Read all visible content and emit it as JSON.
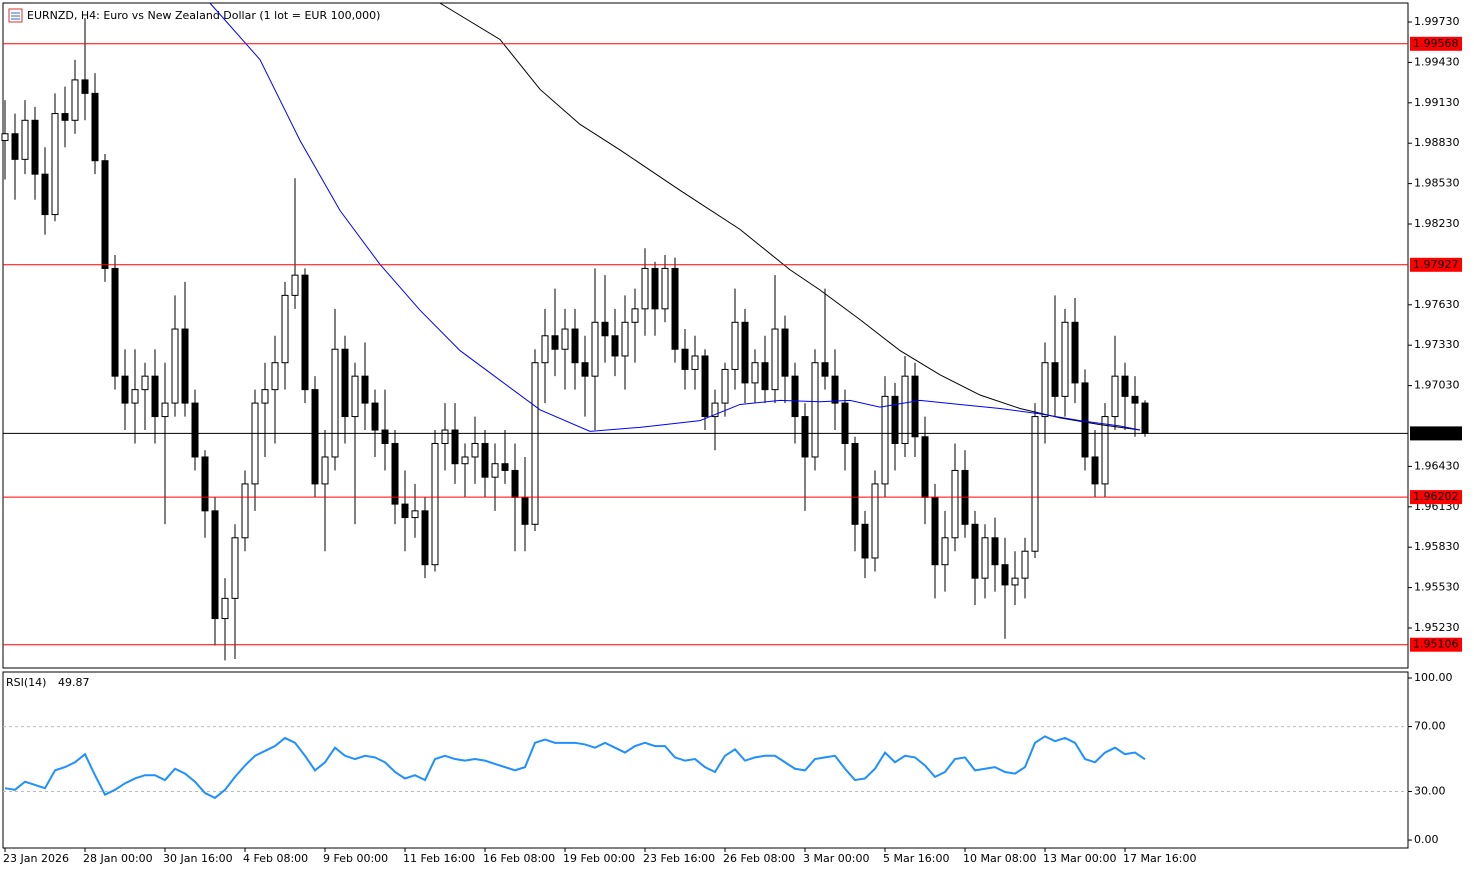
{
  "chart_data": [
    {
      "type": "candlestick",
      "title": "EURNZD, H4:  Euro vs New Zealand Dollar (1 lot = EUR 100,000)",
      "up_color": "#ffffff",
      "down_color": "#000000",
      "ohlc": [
        [
          1.9885,
          1.9915,
          1.9856,
          1.989
        ],
        [
          1.989,
          1.9905,
          1.9841,
          1.9871
        ],
        [
          1.9871,
          1.9915,
          1.986,
          1.99
        ],
        [
          1.99,
          1.991,
          1.9841,
          1.986
        ],
        [
          1.986,
          1.988,
          1.9815,
          1.983
        ],
        [
          1.983,
          1.992,
          1.9825,
          1.9905
        ],
        [
          1.9905,
          1.9925,
          1.988,
          1.99
        ],
        [
          1.99,
          1.9945,
          1.989,
          1.993
        ],
        [
          1.993,
          1.9976,
          1.99,
          1.992
        ],
        [
          1.992,
          1.9935,
          1.986,
          1.987
        ],
        [
          1.987,
          1.9875,
          1.978,
          1.979
        ],
        [
          1.979,
          1.98,
          1.97,
          1.971
        ],
        [
          1.971,
          1.973,
          1.967,
          1.969
        ],
        [
          1.969,
          1.973,
          1.966,
          1.97
        ],
        [
          1.97,
          1.972,
          1.967,
          1.971
        ],
        [
          1.971,
          1.973,
          1.966,
          1.968
        ],
        [
          1.968,
          1.972,
          1.96,
          1.969
        ],
        [
          1.969,
          1.977,
          1.968,
          1.9745
        ],
        [
          1.9745,
          1.978,
          1.968,
          1.969
        ],
        [
          1.969,
          1.97,
          1.964,
          1.965
        ],
        [
          1.965,
          1.9655,
          1.959,
          1.961
        ],
        [
          1.961,
          1.962,
          1.951,
          1.953
        ],
        [
          1.953,
          1.956,
          1.9499,
          1.9545
        ],
        [
          1.9545,
          1.96,
          1.95,
          1.959
        ],
        [
          1.959,
          1.964,
          1.958,
          1.963
        ],
        [
          1.963,
          1.97,
          1.961,
          1.969
        ],
        [
          1.969,
          1.972,
          1.965,
          1.97
        ],
        [
          1.97,
          1.974,
          1.966,
          1.972
        ],
        [
          1.972,
          1.978,
          1.97,
          1.977
        ],
        [
          1.977,
          1.9857,
          1.976,
          1.9785
        ],
        [
          1.9785,
          1.979,
          1.969,
          1.97
        ],
        [
          1.97,
          1.971,
          1.962,
          1.963
        ],
        [
          1.963,
          1.967,
          1.958,
          1.965
        ],
        [
          1.965,
          1.976,
          1.964,
          1.973
        ],
        [
          1.973,
          1.974,
          1.966,
          1.968
        ],
        [
          1.968,
          1.972,
          1.96,
          1.971
        ],
        [
          1.971,
          1.9735,
          1.967,
          1.969
        ],
        [
          1.969,
          1.97,
          1.965,
          1.967
        ],
        [
          1.967,
          1.97,
          1.964,
          1.966
        ],
        [
          1.966,
          1.967,
          1.96,
          1.9615
        ],
        [
          1.9615,
          1.964,
          1.958,
          1.9605
        ],
        [
          1.9605,
          1.963,
          1.959,
          1.961
        ],
        [
          1.961,
          1.962,
          1.956,
          1.957
        ],
        [
          1.957,
          1.967,
          1.9565,
          1.966
        ],
        [
          1.966,
          1.969,
          1.964,
          1.967
        ],
        [
          1.967,
          1.969,
          1.963,
          1.9645
        ],
        [
          1.9645,
          1.966,
          1.962,
          1.965
        ],
        [
          1.965,
          1.968,
          1.963,
          1.966
        ],
        [
          1.966,
          1.967,
          1.962,
          1.9635
        ],
        [
          1.9635,
          1.966,
          1.961,
          1.9645
        ],
        [
          1.9645,
          1.967,
          1.963,
          1.964
        ],
        [
          1.964,
          1.966,
          1.958,
          1.962
        ],
        [
          1.962,
          1.965,
          1.958,
          1.96
        ],
        [
          1.96,
          1.973,
          1.9595,
          1.972
        ],
        [
          1.972,
          1.976,
          1.969,
          1.974
        ],
        [
          1.974,
          1.9775,
          1.971,
          1.973
        ],
        [
          1.973,
          1.976,
          1.97,
          1.9745
        ],
        [
          1.9745,
          1.976,
          1.97,
          1.972
        ],
        [
          1.972,
          1.974,
          1.968,
          1.971
        ],
        [
          1.971,
          1.979,
          1.967,
          1.975
        ],
        [
          1.975,
          1.9785,
          1.972,
          1.974
        ],
        [
          1.974,
          1.976,
          1.971,
          1.9725
        ],
        [
          1.9725,
          1.977,
          1.97,
          1.975
        ],
        [
          1.975,
          1.9775,
          1.972,
          1.976
        ],
        [
          1.976,
          1.9805,
          1.974,
          1.979
        ],
        [
          1.979,
          1.9795,
          1.974,
          1.976
        ],
        [
          1.976,
          1.98,
          1.975,
          1.979
        ],
        [
          1.979,
          1.9798,
          1.972,
          1.973
        ],
        [
          1.973,
          1.9745,
          1.97,
          1.9715
        ],
        [
          1.9715,
          1.974,
          1.97,
          1.9725
        ],
        [
          1.9725,
          1.973,
          1.967,
          1.968
        ],
        [
          1.968,
          1.97,
          1.9655,
          1.969
        ],
        [
          1.969,
          1.972,
          1.968,
          1.9715
        ],
        [
          1.9715,
          1.9775,
          1.97,
          1.975
        ],
        [
          1.975,
          1.976,
          1.969,
          1.9705
        ],
        [
          1.9705,
          1.973,
          1.969,
          1.972
        ],
        [
          1.972,
          1.974,
          1.969,
          1.97
        ],
        [
          1.97,
          1.9785,
          1.969,
          1.9745
        ],
        [
          1.9745,
          1.9755,
          1.969,
          1.971
        ],
        [
          1.971,
          1.972,
          1.966,
          1.968
        ],
        [
          1.968,
          1.969,
          1.961,
          1.965
        ],
        [
          1.965,
          1.973,
          1.964,
          1.972
        ],
        [
          1.972,
          1.9775,
          1.97,
          1.971
        ],
        [
          1.971,
          1.973,
          1.967,
          1.969
        ],
        [
          1.969,
          1.97,
          1.964,
          1.966
        ],
        [
          1.966,
          1.9665,
          1.958,
          1.96
        ],
        [
          1.96,
          1.961,
          1.956,
          1.9575
        ],
        [
          1.9575,
          1.964,
          1.9565,
          1.963
        ],
        [
          1.963,
          1.971,
          1.962,
          1.9695
        ],
        [
          1.9695,
          1.9705,
          1.964,
          1.966
        ],
        [
          1.966,
          1.9725,
          1.965,
          1.971
        ],
        [
          1.971,
          1.972,
          1.965,
          1.9665
        ],
        [
          1.9665,
          1.968,
          1.96,
          1.962
        ],
        [
          1.962,
          1.963,
          1.9545,
          1.957
        ],
        [
          1.957,
          1.961,
          1.955,
          1.959
        ],
        [
          1.959,
          1.966,
          1.958,
          1.964
        ],
        [
          1.964,
          1.9655,
          1.959,
          1.96
        ],
        [
          1.96,
          1.961,
          1.954,
          1.956
        ],
        [
          1.956,
          1.96,
          1.9545,
          1.959
        ],
        [
          1.959,
          1.9605,
          1.955,
          1.957
        ],
        [
          1.957,
          1.959,
          1.9515,
          1.9555
        ],
        [
          1.9555,
          1.958,
          1.954,
          1.956
        ],
        [
          1.956,
          1.959,
          1.9545,
          1.958
        ],
        [
          1.958,
          1.969,
          1.9575,
          1.968
        ],
        [
          1.968,
          1.9735,
          1.966,
          1.972
        ],
        [
          1.972,
          1.977,
          1.968,
          1.9695
        ],
        [
          1.9695,
          1.976,
          1.968,
          1.975
        ],
        [
          1.975,
          1.9768,
          1.969,
          1.9705
        ],
        [
          1.9705,
          1.9715,
          1.964,
          1.965
        ],
        [
          1.965,
          1.967,
          1.962,
          1.963
        ],
        [
          1.963,
          1.969,
          1.962,
          1.968
        ],
        [
          1.968,
          1.974,
          1.967,
          1.971
        ],
        [
          1.971,
          1.972,
          1.967,
          1.9695
        ],
        [
          1.9695,
          1.971,
          1.9665,
          1.969
        ],
        [
          1.969,
          1.9692,
          1.9665,
          1.96675
        ]
      ],
      "lines": [
        {
          "color": "#000000",
          "x": [
            43.5,
            49.5,
            53.5,
            57.5,
            61.5,
            67.5,
            73.5,
            78.5,
            81.5,
            85.5,
            89.5,
            93.5,
            97.5,
            101.5,
            105.5,
            109.5,
            113.5
          ],
          "values": [
            1.9987,
            1.996,
            1.9923,
            1.9897,
            1.9878,
            1.9848,
            1.9819,
            1.9789,
            1.9774,
            1.9752,
            1.9729,
            1.9711,
            1.9696,
            1.9686,
            1.9679,
            1.9674,
            1.967
          ]
        },
        {
          "color": "#0000ff",
          "x": [
            20.5,
            25.5,
            29.5,
            33.5,
            37.5,
            41.5,
            45.5,
            49.5,
            53.5,
            58.5,
            63.5,
            69.5,
            73.5,
            77.5,
            81.5,
            84.5,
            87.5,
            91.5,
            95.5,
            99.5,
            103.5,
            107.5,
            111.5,
            113.5
          ],
          "values": [
            1.9987,
            1.9945,
            1.9885,
            1.9833,
            1.9793,
            1.9759,
            1.9729,
            1.9707,
            1.9685,
            1.9669,
            1.9672,
            1.9677,
            1.9689,
            1.9692,
            1.9691,
            1.9692,
            1.9687,
            1.9692,
            1.9689,
            1.9686,
            1.9682,
            1.9677,
            1.9673,
            1.967
          ]
        }
      ],
      "levels": [
        {
          "value": 1.99568,
          "color": "#ff0000"
        },
        {
          "value": 1.97927,
          "color": "#ff0000"
        },
        {
          "value": 1.96202,
          "color": "#ff0000"
        },
        {
          "value": 1.95106,
          "color": "#ff0000"
        }
      ],
      "current_price": 1.96675,
      "ylim": [
        1.94933,
        1.99871
      ],
      "yticks": [
        {
          "value": 1.9973,
          "label": "1.99730"
        },
        {
          "value": 1.9943,
          "label": "1.99430"
        },
        {
          "value": 1.9913,
          "label": "1.99130"
        },
        {
          "value": 1.9883,
          "label": "1.98830"
        },
        {
          "value": 1.9853,
          "label": "1.98530"
        },
        {
          "value": 1.9823,
          "label": "1.98230"
        },
        {
          "value": 1.9763,
          "label": "1.97630"
        },
        {
          "value": 1.9733,
          "label": "1.97330"
        },
        {
          "value": 1.9703,
          "label": "1.97030"
        },
        {
          "value": 1.9643,
          "label": "1.96430"
        },
        {
          "value": 1.9613,
          "label": "1.96130"
        },
        {
          "value": 1.9583,
          "label": "1.95830"
        },
        {
          "value": 1.9553,
          "label": "1.95530"
        },
        {
          "value": 1.9523,
          "label": "1.95230"
        }
      ],
      "xlim": [
        -0.2,
        140.3
      ],
      "xticks": [
        {
          "value": 0,
          "label": "23 Jan 2026"
        },
        {
          "value": 8,
          "label": "28 Jan 00:00"
        },
        {
          "value": 16,
          "label": "30 Jan 16:00"
        },
        {
          "value": 24,
          "label": "4 Feb 08:00"
        },
        {
          "value": 32,
          "label": "9 Feb 00:00"
        },
        {
          "value": 40,
          "label": "11 Feb 16:00"
        },
        {
          "value": 48,
          "label": "16 Feb 08:00"
        },
        {
          "value": 56,
          "label": "19 Feb 00:00"
        },
        {
          "value": 64,
          "label": "23 Feb 16:00"
        },
        {
          "value": 72,
          "label": "26 Feb 08:00"
        },
        {
          "value": 80,
          "label": "3 Mar 00:00"
        },
        {
          "value": 88,
          "label": "5 Mar 16:00"
        },
        {
          "value": 96,
          "label": "10 Mar 08:00"
        },
        {
          "value": 104,
          "label": "13 Mar 00:00"
        },
        {
          "value": 112,
          "label": "17 Mar 16:00"
        }
      ]
    },
    {
      "type": "line",
      "title": "RSI(14)",
      "color": "#1e90ff",
      "values": [
        32,
        31,
        36,
        34,
        32,
        43,
        45,
        48,
        53,
        40,
        28,
        31,
        35,
        38,
        40,
        40,
        37,
        44,
        41,
        36,
        29,
        26,
        31,
        39,
        46,
        52,
        55,
        58,
        63,
        60,
        52,
        43,
        48,
        57,
        52,
        50,
        52,
        51,
        48,
        42,
        38,
        40,
        37,
        50,
        52,
        50,
        49,
        50,
        49,
        47,
        45,
        43,
        45,
        60,
        62,
        60,
        60,
        60,
        59,
        57,
        60,
        57,
        54,
        58,
        60,
        58,
        58,
        51,
        49,
        50,
        45,
        42,
        52,
        56,
        49,
        51,
        52,
        52,
        48,
        44,
        43,
        50,
        51,
        52,
        44,
        37,
        38,
        44,
        54,
        48,
        52,
        51,
        46,
        39,
        42,
        50,
        51,
        43,
        44,
        45,
        42,
        41,
        45,
        60,
        64,
        61,
        63,
        60,
        50,
        48,
        54,
        57,
        53,
        54,
        49.87
      ],
      "levels": [
        70,
        30
      ],
      "ylim": [
        -4.9,
        103.7
      ],
      "yticks": [
        {
          "value": 100,
          "label": "100.00"
        },
        {
          "value": 70,
          "label": "70.00"
        },
        {
          "value": 30,
          "label": "30.00"
        },
        {
          "value": 0,
          "label": "0.00"
        }
      ],
      "xlim": [
        -0.2,
        140.3
      ]
    }
  ]
}
